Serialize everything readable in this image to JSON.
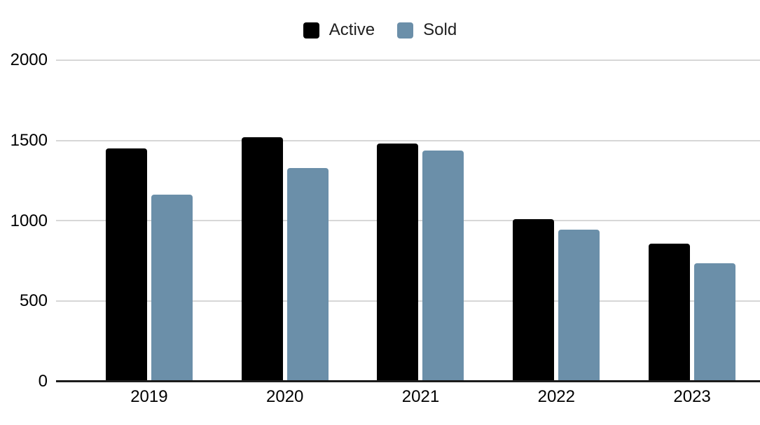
{
  "chart_data": {
    "type": "bar",
    "title": "",
    "categories": [
      "2019",
      "2020",
      "2021",
      "2022",
      "2023"
    ],
    "series": [
      {
        "name": "Active",
        "color": "#000000",
        "values": [
          1450,
          1520,
          1480,
          1010,
          860
        ]
      },
      {
        "name": "Sold",
        "color": "#6b8fa9",
        "values": [
          1165,
          1330,
          1440,
          945,
          735
        ]
      }
    ],
    "ylim": [
      0,
      2000
    ],
    "yticks": [
      0,
      500,
      1000,
      1500,
      2000
    ],
    "xlabel": "",
    "ylabel": "",
    "grid": true,
    "legend_position": "top-center"
  },
  "legend": {
    "items": [
      {
        "label": "Active",
        "color": "#000000"
      },
      {
        "label": "Sold",
        "color": "#6b8fa9"
      }
    ]
  },
  "styles": {
    "background": "#ffffff",
    "gridline_color": "#d7d7d7",
    "axis_line_color": "#1c1c1c",
    "text_color": "#1f1f1f"
  }
}
